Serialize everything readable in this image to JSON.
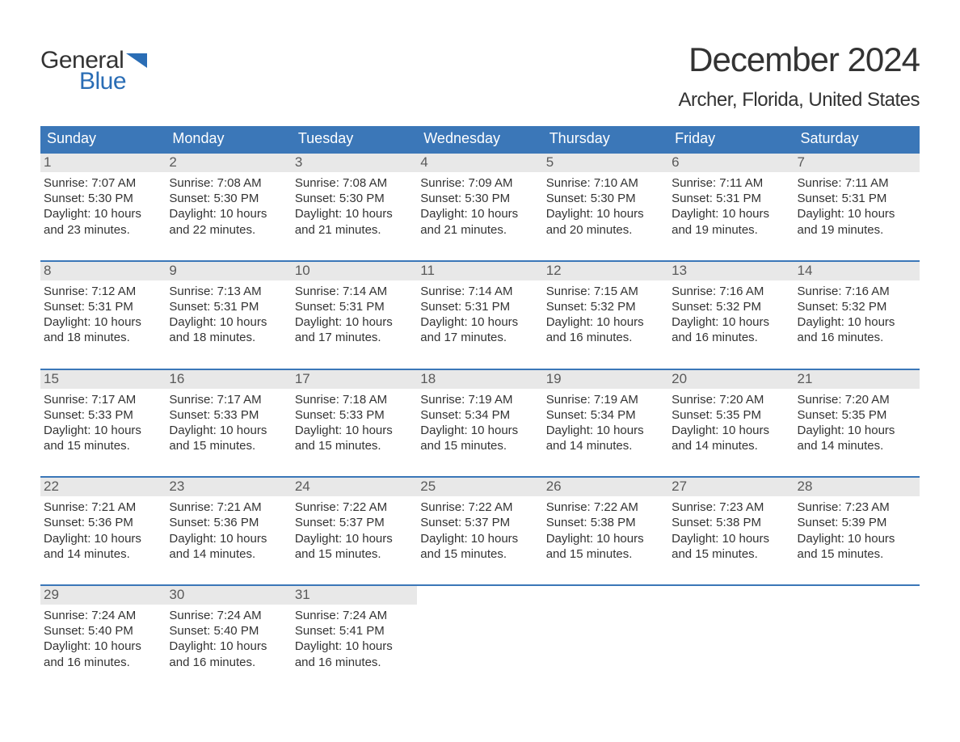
{
  "logo": {
    "text_top": "General",
    "text_bottom": "Blue",
    "flag_color": "#2a6db5"
  },
  "title": "December 2024",
  "location": "Archer, Florida, United States",
  "colors": {
    "header_bg": "#3b77b8",
    "header_text": "#ffffff",
    "daynum_bg": "#e8e8e8",
    "daynum_text": "#5a5a5a",
    "body_text": "#333333",
    "row_border": "#3b77b8",
    "logo_blue": "#2a6db5"
  },
  "weekdays": [
    "Sunday",
    "Monday",
    "Tuesday",
    "Wednesday",
    "Thursday",
    "Friday",
    "Saturday"
  ],
  "weeks": [
    [
      {
        "day": "1",
        "sunrise": "Sunrise: 7:07 AM",
        "sunset": "Sunset: 5:30 PM",
        "daylight": "Daylight: 10 hours\nand 23 minutes."
      },
      {
        "day": "2",
        "sunrise": "Sunrise: 7:08 AM",
        "sunset": "Sunset: 5:30 PM",
        "daylight": "Daylight: 10 hours\nand 22 minutes."
      },
      {
        "day": "3",
        "sunrise": "Sunrise: 7:08 AM",
        "sunset": "Sunset: 5:30 PM",
        "daylight": "Daylight: 10 hours\nand 21 minutes."
      },
      {
        "day": "4",
        "sunrise": "Sunrise: 7:09 AM",
        "sunset": "Sunset: 5:30 PM",
        "daylight": "Daylight: 10 hours\nand 21 minutes."
      },
      {
        "day": "5",
        "sunrise": "Sunrise: 7:10 AM",
        "sunset": "Sunset: 5:30 PM",
        "daylight": "Daylight: 10 hours\nand 20 minutes."
      },
      {
        "day": "6",
        "sunrise": "Sunrise: 7:11 AM",
        "sunset": "Sunset: 5:31 PM",
        "daylight": "Daylight: 10 hours\nand 19 minutes."
      },
      {
        "day": "7",
        "sunrise": "Sunrise: 7:11 AM",
        "sunset": "Sunset: 5:31 PM",
        "daylight": "Daylight: 10 hours\nand 19 minutes."
      }
    ],
    [
      {
        "day": "8",
        "sunrise": "Sunrise: 7:12 AM",
        "sunset": "Sunset: 5:31 PM",
        "daylight": "Daylight: 10 hours\nand 18 minutes."
      },
      {
        "day": "9",
        "sunrise": "Sunrise: 7:13 AM",
        "sunset": "Sunset: 5:31 PM",
        "daylight": "Daylight: 10 hours\nand 18 minutes."
      },
      {
        "day": "10",
        "sunrise": "Sunrise: 7:14 AM",
        "sunset": "Sunset: 5:31 PM",
        "daylight": "Daylight: 10 hours\nand 17 minutes."
      },
      {
        "day": "11",
        "sunrise": "Sunrise: 7:14 AM",
        "sunset": "Sunset: 5:31 PM",
        "daylight": "Daylight: 10 hours\nand 17 minutes."
      },
      {
        "day": "12",
        "sunrise": "Sunrise: 7:15 AM",
        "sunset": "Sunset: 5:32 PM",
        "daylight": "Daylight: 10 hours\nand 16 minutes."
      },
      {
        "day": "13",
        "sunrise": "Sunrise: 7:16 AM",
        "sunset": "Sunset: 5:32 PM",
        "daylight": "Daylight: 10 hours\nand 16 minutes."
      },
      {
        "day": "14",
        "sunrise": "Sunrise: 7:16 AM",
        "sunset": "Sunset: 5:32 PM",
        "daylight": "Daylight: 10 hours\nand 16 minutes."
      }
    ],
    [
      {
        "day": "15",
        "sunrise": "Sunrise: 7:17 AM",
        "sunset": "Sunset: 5:33 PM",
        "daylight": "Daylight: 10 hours\nand 15 minutes."
      },
      {
        "day": "16",
        "sunrise": "Sunrise: 7:17 AM",
        "sunset": "Sunset: 5:33 PM",
        "daylight": "Daylight: 10 hours\nand 15 minutes."
      },
      {
        "day": "17",
        "sunrise": "Sunrise: 7:18 AM",
        "sunset": "Sunset: 5:33 PM",
        "daylight": "Daylight: 10 hours\nand 15 minutes."
      },
      {
        "day": "18",
        "sunrise": "Sunrise: 7:19 AM",
        "sunset": "Sunset: 5:34 PM",
        "daylight": "Daylight: 10 hours\nand 15 minutes."
      },
      {
        "day": "19",
        "sunrise": "Sunrise: 7:19 AM",
        "sunset": "Sunset: 5:34 PM",
        "daylight": "Daylight: 10 hours\nand 14 minutes."
      },
      {
        "day": "20",
        "sunrise": "Sunrise: 7:20 AM",
        "sunset": "Sunset: 5:35 PM",
        "daylight": "Daylight: 10 hours\nand 14 minutes."
      },
      {
        "day": "21",
        "sunrise": "Sunrise: 7:20 AM",
        "sunset": "Sunset: 5:35 PM",
        "daylight": "Daylight: 10 hours\nand 14 minutes."
      }
    ],
    [
      {
        "day": "22",
        "sunrise": "Sunrise: 7:21 AM",
        "sunset": "Sunset: 5:36 PM",
        "daylight": "Daylight: 10 hours\nand 14 minutes."
      },
      {
        "day": "23",
        "sunrise": "Sunrise: 7:21 AM",
        "sunset": "Sunset: 5:36 PM",
        "daylight": "Daylight: 10 hours\nand 14 minutes."
      },
      {
        "day": "24",
        "sunrise": "Sunrise: 7:22 AM",
        "sunset": "Sunset: 5:37 PM",
        "daylight": "Daylight: 10 hours\nand 15 minutes."
      },
      {
        "day": "25",
        "sunrise": "Sunrise: 7:22 AM",
        "sunset": "Sunset: 5:37 PM",
        "daylight": "Daylight: 10 hours\nand 15 minutes."
      },
      {
        "day": "26",
        "sunrise": "Sunrise: 7:22 AM",
        "sunset": "Sunset: 5:38 PM",
        "daylight": "Daylight: 10 hours\nand 15 minutes."
      },
      {
        "day": "27",
        "sunrise": "Sunrise: 7:23 AM",
        "sunset": "Sunset: 5:38 PM",
        "daylight": "Daylight: 10 hours\nand 15 minutes."
      },
      {
        "day": "28",
        "sunrise": "Sunrise: 7:23 AM",
        "sunset": "Sunset: 5:39 PM",
        "daylight": "Daylight: 10 hours\nand 15 minutes."
      }
    ],
    [
      {
        "day": "29",
        "sunrise": "Sunrise: 7:24 AM",
        "sunset": "Sunset: 5:40 PM",
        "daylight": "Daylight: 10 hours\nand 16 minutes."
      },
      {
        "day": "30",
        "sunrise": "Sunrise: 7:24 AM",
        "sunset": "Sunset: 5:40 PM",
        "daylight": "Daylight: 10 hours\nand 16 minutes."
      },
      {
        "day": "31",
        "sunrise": "Sunrise: 7:24 AM",
        "sunset": "Sunset: 5:41 PM",
        "daylight": "Daylight: 10 hours\nand 16 minutes."
      },
      null,
      null,
      null,
      null
    ]
  ]
}
